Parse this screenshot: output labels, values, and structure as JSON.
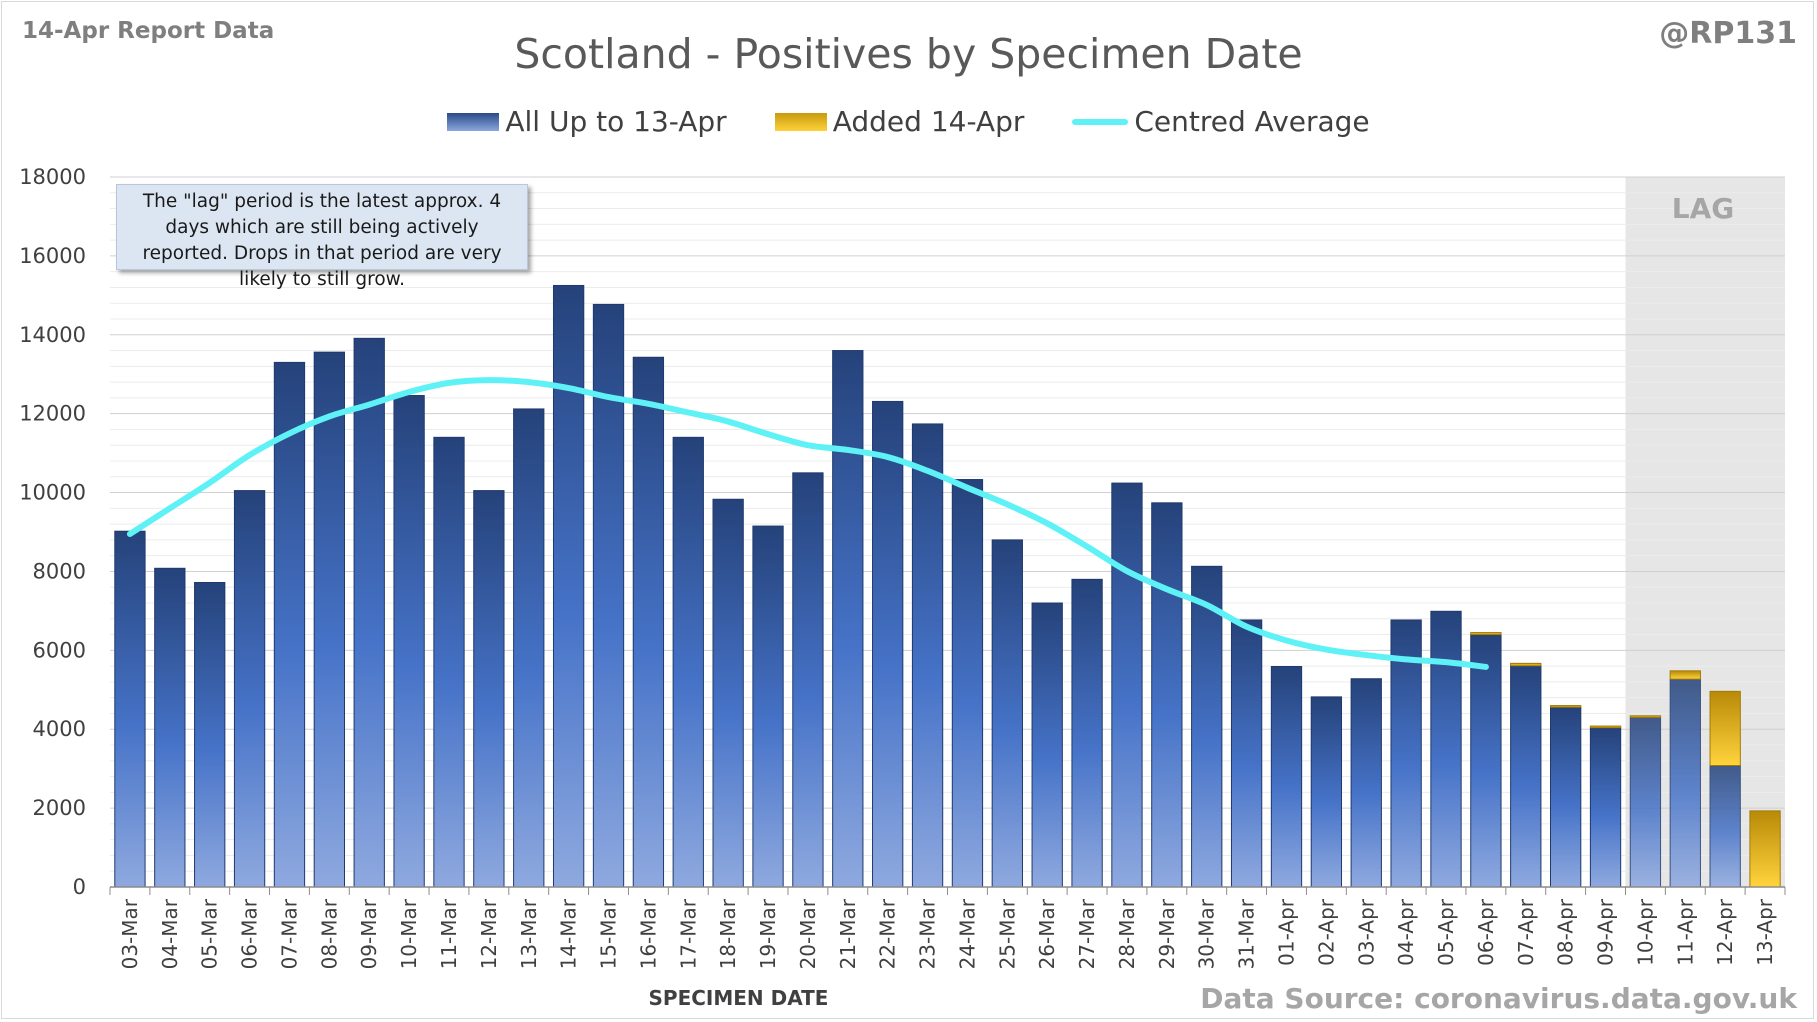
{
  "header": {
    "report_label": "14-Apr Report Data",
    "handle": "@RP131"
  },
  "footer": {
    "source": "Data Source: coronavirus.data.gov.uk"
  },
  "annotation": {
    "note": "The \"lag\" period is the latest approx. 4 days which are still being actively reported.  Drops in that period are very likely to still grow.",
    "lag_label": "LAG"
  },
  "colors": {
    "bar_top": "#2a4a86",
    "bar_bottom": "#8ba7df",
    "added_top": "#c79a10",
    "added_bottom": "#ffd23a",
    "average": "#5ef2f7",
    "lag_shade": "#e6e6e6",
    "grid": "#d9d9d9"
  },
  "chart_data": {
    "type": "bar",
    "title": "Scotland - Positives by Specimen Date",
    "xlabel": "SPECIMEN DATE",
    "ylabel": "",
    "ylim": [
      0,
      18000
    ],
    "yticks": [
      0,
      2000,
      4000,
      6000,
      8000,
      10000,
      12000,
      14000,
      16000,
      18000
    ],
    "grid": true,
    "stacked": true,
    "legend_position": "top",
    "lag_period": [
      "10-Apr",
      "13-Apr"
    ],
    "categories": [
      "03-Mar",
      "04-Mar",
      "05-Mar",
      "06-Mar",
      "07-Mar",
      "08-Mar",
      "09-Mar",
      "10-Mar",
      "11-Mar",
      "12-Mar",
      "13-Mar",
      "14-Mar",
      "15-Mar",
      "16-Mar",
      "17-Mar",
      "18-Mar",
      "19-Mar",
      "20-Mar",
      "21-Mar",
      "22-Mar",
      "23-Mar",
      "24-Mar",
      "25-Mar",
      "26-Mar",
      "27-Mar",
      "28-Mar",
      "29-Mar",
      "30-Mar",
      "31-Mar",
      "01-Apr",
      "02-Apr",
      "03-Apr",
      "04-Apr",
      "05-Apr",
      "06-Apr",
      "07-Apr",
      "08-Apr",
      "09-Apr",
      "10-Apr",
      "11-Apr",
      "12-Apr",
      "13-Apr"
    ],
    "series": [
      {
        "name": "All Up to 13-Apr",
        "values": [
          9020,
          8080,
          7720,
          10050,
          13300,
          13560,
          13910,
          12460,
          11400,
          10050,
          12120,
          15250,
          14770,
          13430,
          11400,
          9830,
          9150,
          10500,
          13600,
          12310,
          11740,
          10330,
          8800,
          7200,
          7800,
          10240,
          9740,
          8130,
          6770,
          5590,
          4820,
          5280,
          6770,
          6990,
          6400,
          5610,
          4560,
          4040,
          4300,
          5270,
          3080,
          0
        ]
      },
      {
        "name": "Added 14-Apr",
        "values": [
          0,
          0,
          0,
          0,
          0,
          0,
          0,
          0,
          0,
          0,
          0,
          0,
          0,
          0,
          0,
          0,
          0,
          0,
          0,
          0,
          0,
          0,
          0,
          0,
          0,
          0,
          0,
          0,
          0,
          0,
          0,
          0,
          0,
          0,
          50,
          60,
          40,
          40,
          40,
          210,
          1880,
          1930
        ]
      },
      {
        "name": "Centred Average",
        "type": "line",
        "values": [
          8950,
          9600,
          10250,
          10950,
          11500,
          11930,
          12230,
          12550,
          12780,
          12850,
          12800,
          12650,
          12420,
          12250,
          12030,
          11800,
          11480,
          11200,
          11080,
          10900,
          10550,
          10120,
          9700,
          9220,
          8630,
          8010,
          7550,
          7150,
          6600,
          6250,
          6020,
          5880,
          5770,
          5700,
          5580,
          null,
          null,
          null,
          null,
          null,
          null,
          null
        ]
      }
    ]
  }
}
